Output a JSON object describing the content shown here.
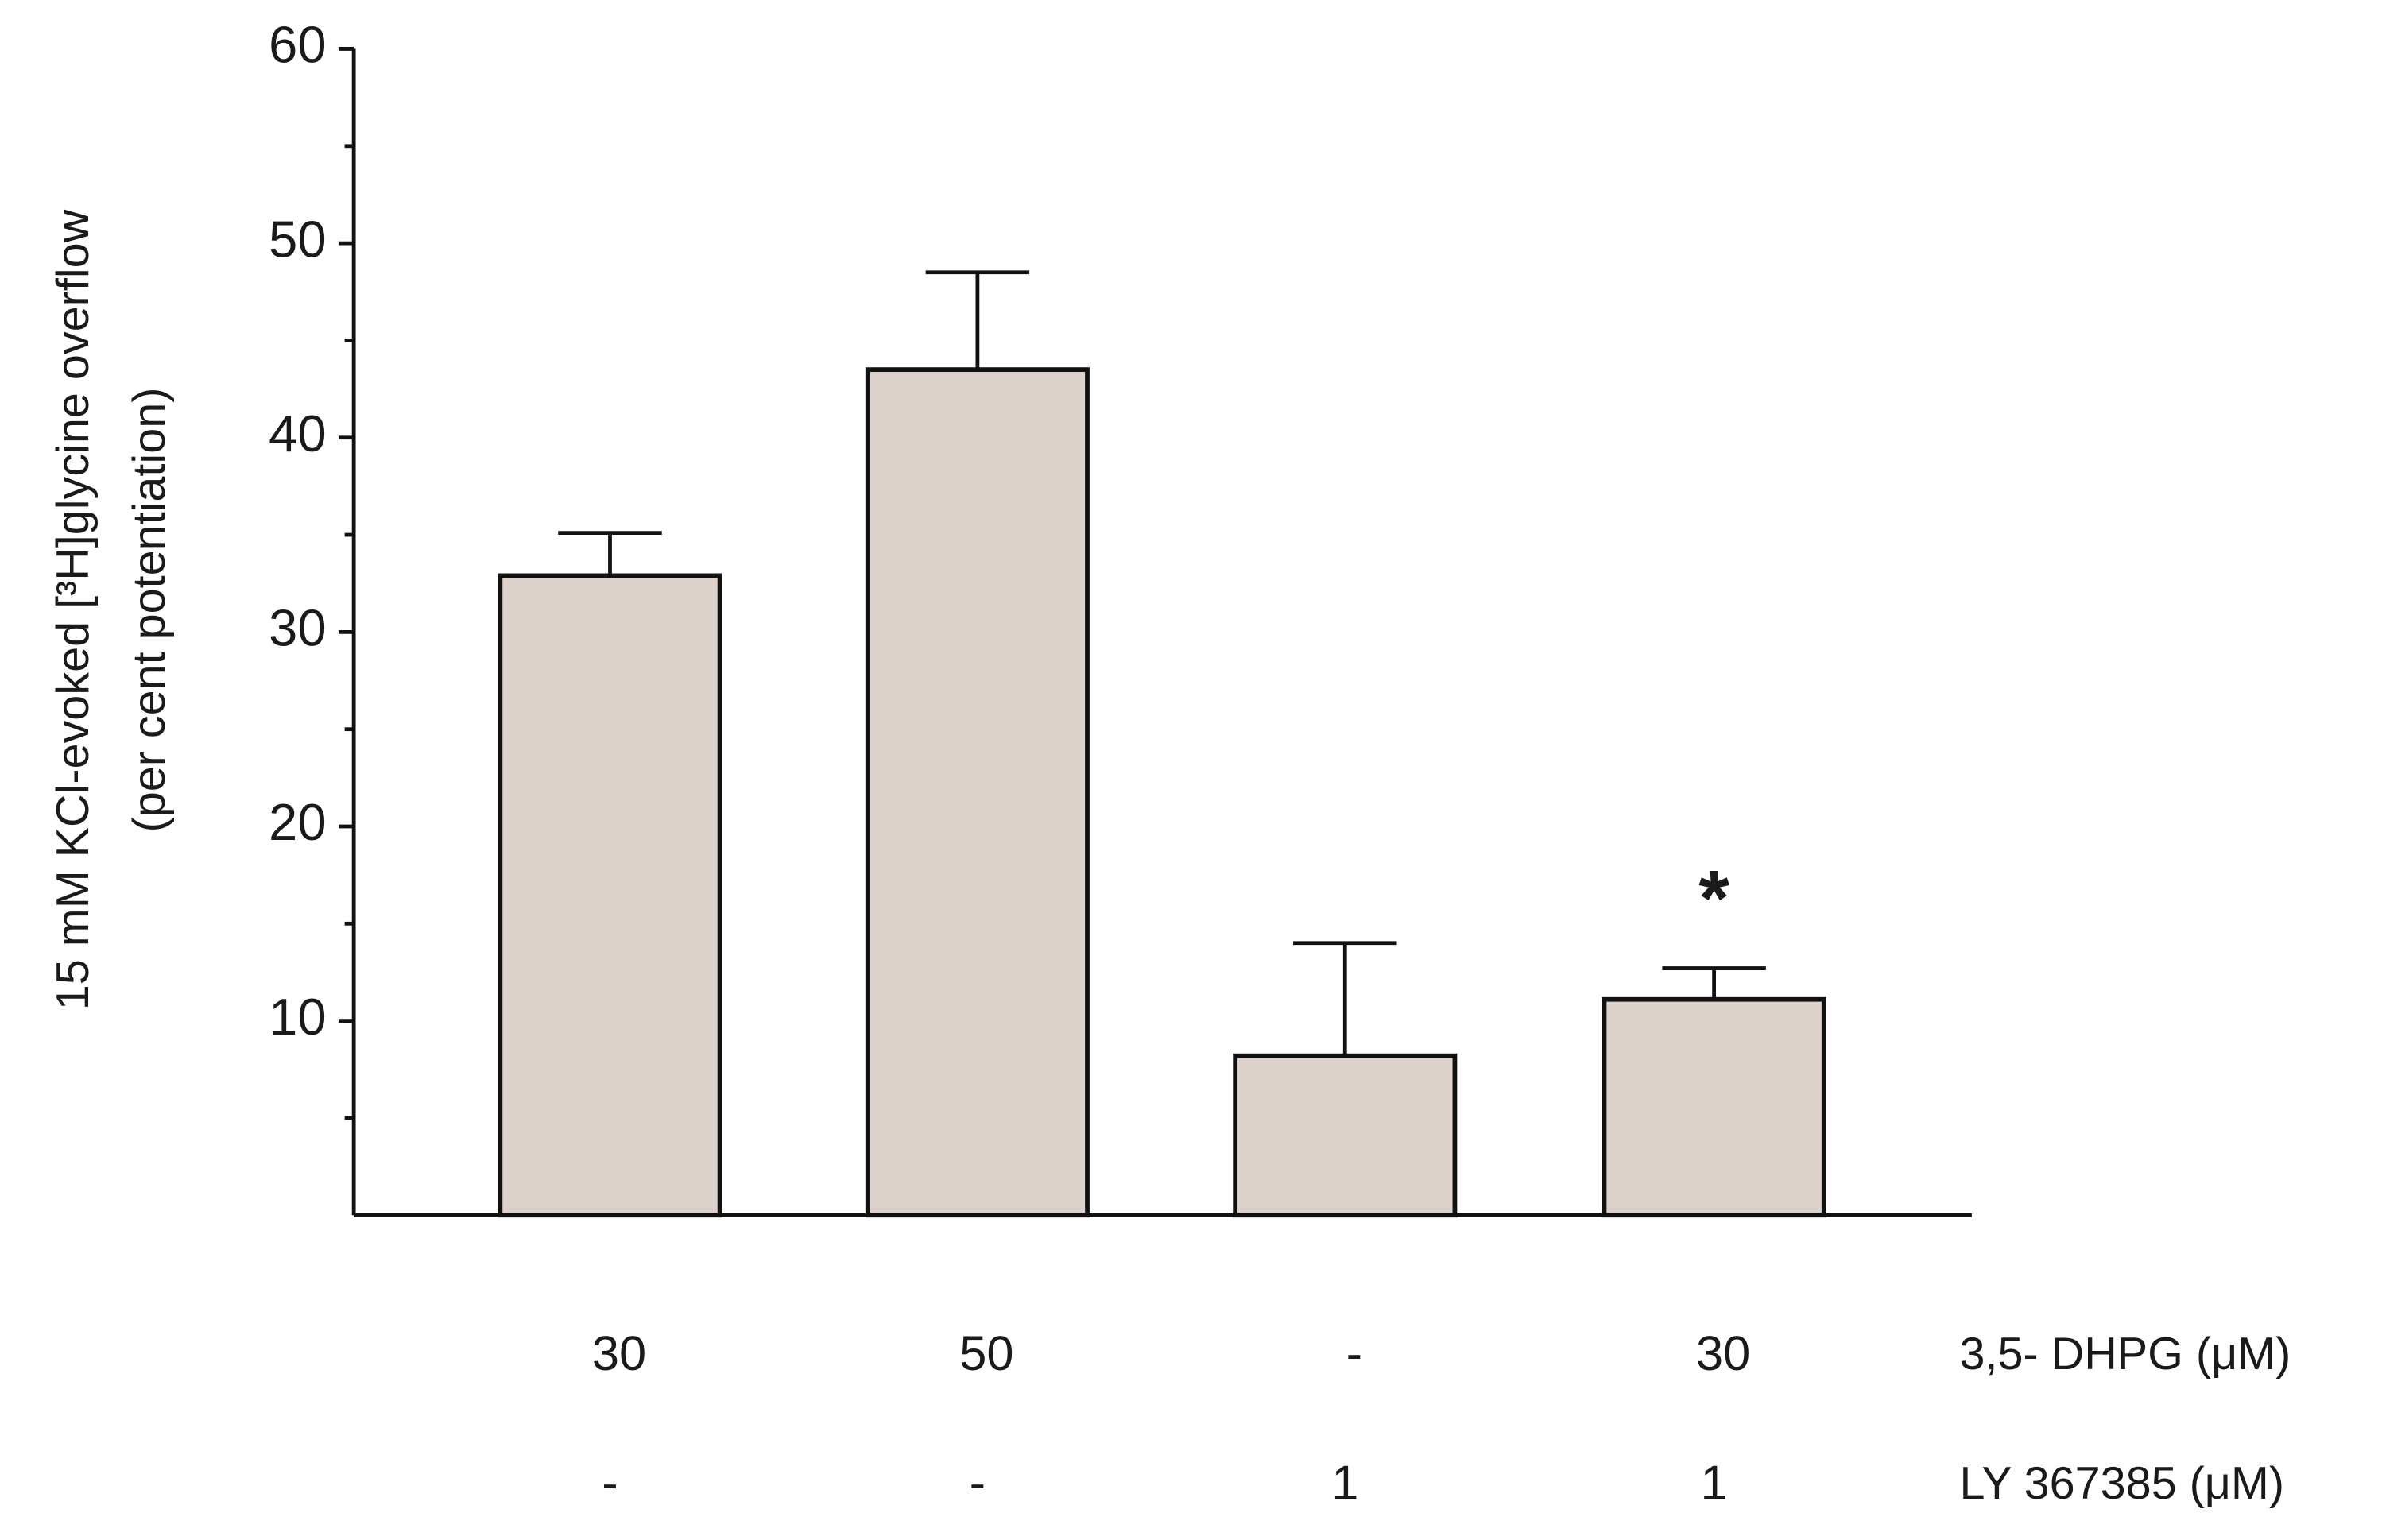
{
  "chart_data": {
    "type": "bar",
    "ylabel": "15 mM KCl-evoked [³H]glycine overflow",
    "ylabel2": "(per cent potentiation)",
    "values": [
      32.9,
      43.5,
      8.2,
      11.1
    ],
    "errors": [
      2.2,
      5.0,
      5.8,
      1.6
    ],
    "value_annotations": [
      null,
      null,
      null,
      "*"
    ],
    "color": "#ddd1cc",
    "ylim": [
      0,
      60
    ],
    "yticks": [
      10,
      20,
      30,
      40,
      50,
      60
    ],
    "minor_yticks": [
      5,
      15,
      25,
      35,
      45,
      55
    ],
    "treatment_rows": [
      {
        "label": "3,5- DHPG (μM)",
        "values": [
          "30",
          "50",
          "-",
          "30"
        ]
      },
      {
        "label": "LY  367385 (μM)",
        "values": [
          "-",
          "-",
          "1",
          "1"
        ]
      }
    ]
  }
}
